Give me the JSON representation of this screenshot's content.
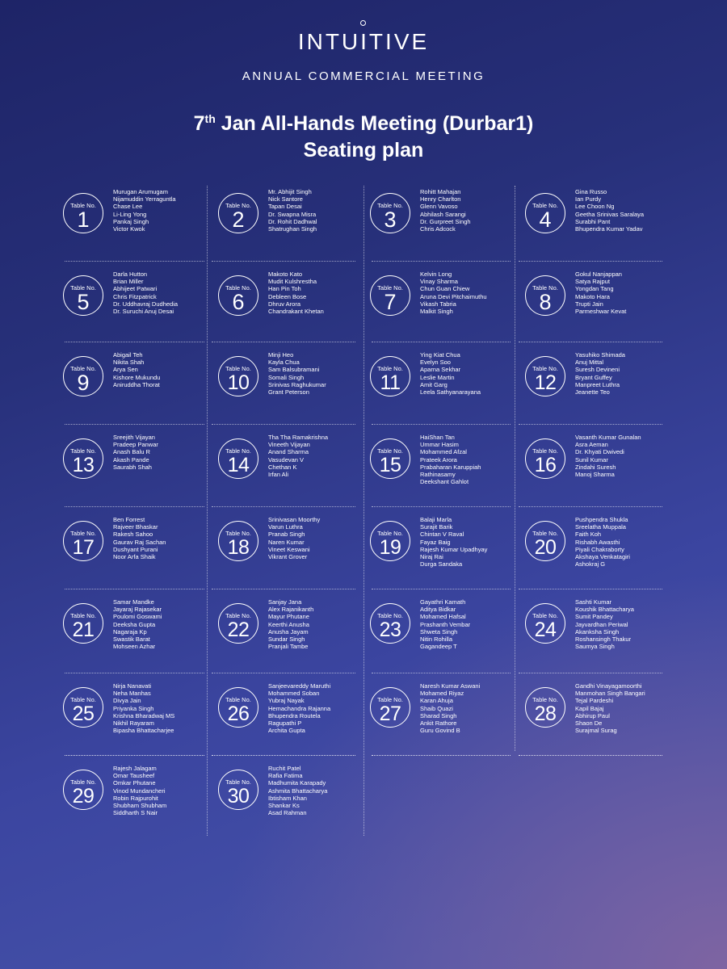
{
  "header": {
    "logo": "INTUITIVE",
    "subtitle": "ANNUAL COMMERCIAL MEETING",
    "title_ordinal": "7",
    "title_suffix": "th",
    "title_rest": " Jan All-Hands Meeting (Durbar1)",
    "title_line2": "Seating plan"
  },
  "table_label": "Table No.",
  "tables": [
    {
      "number": "1",
      "names": [
        "Murugan Arumugam",
        "Nijamuddin Yerraguntla",
        "Chase Lee",
        "Li-Ling Yong",
        "Pankaj Singh",
        "Victor Kwok"
      ]
    },
    {
      "number": "2",
      "names": [
        "Mr. Abhijit Singh",
        "Nick Santore",
        "Tapan Desai",
        "Dr. Swapna Misra",
        "Dr. Rohit Dadhwal",
        "Shatrughan Singh"
      ]
    },
    {
      "number": "3",
      "names": [
        "Rohitt Mahajan",
        "Henry Charlton",
        "Glenn Vavoso",
        "Abhilash Sarangi",
        "Dr. Gurpreet Singh",
        "Chris Adcock"
      ]
    },
    {
      "number": "4",
      "names": [
        "Gina Russo",
        "Ian Purdy",
        "Lee Choon Ng",
        "Geetha Srinivas Saralaya",
        "Surabhi Pant",
        "Bhupendra Kumar Yadav"
      ]
    },
    {
      "number": "5",
      "names": [
        "Darla Hutton",
        "Brian Miller",
        "Abhijeet Patwari",
        "Chris Fitzpatrick",
        "Dr. Uddhavraj Dudhedia",
        "Dr. Suruchi Anuj Desai"
      ]
    },
    {
      "number": "6",
      "names": [
        "Makoto Kato",
        "Mudit Kulshrestha",
        "Han Pin Toh",
        "Debleen Bose",
        "Dhruv Arora",
        "Chandrakant Khetan"
      ]
    },
    {
      "number": "7",
      "names": [
        "Kelvin Long",
        "Vinay Sharma",
        "Chun Guan Chiew",
        "Aruna Devi Pitchaimuthu",
        "Vikash Tabria",
        "Malkit Singh"
      ]
    },
    {
      "number": "8",
      "names": [
        "Gokul Nanjappan",
        "Satya Rajput",
        "Yongdan Tang",
        "Makoto Hara",
        "Trupti Jain",
        "Parmeshwar Kevat"
      ]
    },
    {
      "number": "9",
      "names": [
        "Abigail Teh",
        "Nikita Shah",
        "Arya Sen",
        "Kishore Mukundu",
        "Aniruddha Thorat"
      ]
    },
    {
      "number": "10",
      "names": [
        "Minji Heo",
        "Kayla Chua",
        "Sam Balsubramani",
        "Somali Singh",
        "Srinivas Raghukumar",
        "Grant Peterson"
      ]
    },
    {
      "number": "11",
      "names": [
        "Ying Kiat Chua",
        "Evelyn Soo",
        "Aparna Sekhar",
        "Leslie Martin",
        "Amit Garg",
        "Leela Sathyanarayana"
      ]
    },
    {
      "number": "12",
      "names": [
        "Yasuhiko Shimada",
        "Anuj Mittal",
        "Suresh Devineni",
        "Bryant Guffey",
        "Manpreet Luthra",
        "Jeanette Teo"
      ]
    },
    {
      "number": "13",
      "names": [
        "Sreejith Vijayan",
        "Pradeep Panwar",
        "Anash Balu R",
        "Akash Pande",
        "Saurabh Shah"
      ]
    },
    {
      "number": "14",
      "names": [
        "Tha Tha Ramakrishna",
        "Vineeth Vijayan",
        "Anand Sharma",
        "Vasudevan V",
        "Chethan K",
        "Irfan Ali"
      ]
    },
    {
      "number": "15",
      "names": [
        "HaiShan Tan",
        "Ummar Hasim",
        "Mohammed Afzal",
        "Prateek Arora",
        "Prabaharan Karuppiah",
        "Rathinasamy",
        "Deekshant Gahlot"
      ]
    },
    {
      "number": "16",
      "names": [
        "Vasanth Kumar Gunalan",
        "Asra Aeman",
        "Dr. Khyati Dwivedi",
        "Sunil Kumar",
        "Zindahi Suresh",
        "Manoj Sharma"
      ]
    },
    {
      "number": "17",
      "names": [
        "Ben Forrest",
        "Rajveer Bhaskar",
        "Rakesh Sahoo",
        "Gaurav Raj Sachan",
        "Dushyant Purani",
        "Noor Arfa Shaik"
      ]
    },
    {
      "number": "18",
      "names": [
        "Srinivasan Moorthy",
        "Varun Luthra",
        "Pranab Singh",
        "Naren Kumar",
        "Vineet Keswani",
        "Vikrant Grover"
      ]
    },
    {
      "number": "19",
      "names": [
        "Balaji Marla",
        "Surajit Barik",
        "Chintan V Raval",
        "Fayaz Baig",
        "Rajesh Kumar Upadhyay",
        "Niraj Rai",
        "Durga Sandaka"
      ]
    },
    {
      "number": "20",
      "names": [
        "Pushpendra Shukla",
        "Sreelatha Muppala",
        "Faith Koh",
        "Rishabh Awasthi",
        "Piyali Chakraborty",
        "Akshaya Venkatagiri",
        "Ashokraj G"
      ]
    },
    {
      "number": "21",
      "names": [
        "Samar Mandke",
        "Jayaraj Rajasekar",
        "Poulomi Goswami",
        "Deeksha Gupta",
        "Nagaraja Kp",
        "Swastik Barat",
        "Mohseen Azhar"
      ]
    },
    {
      "number": "22",
      "names": [
        "Sanjay Jana",
        "Alex Rajanikanth",
        "Mayur Phutane",
        "Keerthi Anusha",
        "Anusha Jayam",
        "Sundar Singh",
        "Pranjali Tambe"
      ]
    },
    {
      "number": "23",
      "names": [
        "Gayathri Kamath",
        "Aditya Bidkar",
        "Mohamed Hafsal",
        "Prashanth Vembar",
        "Shweta Singh",
        "Nitin Rohilla",
        "Gagandeep T"
      ]
    },
    {
      "number": "24",
      "names": [
        "Sashti Kumar",
        "Koushik Bhattacharya",
        "Sumit Pandey",
        "Jayvardhan Periwal",
        "Akanksha Singh",
        "Roshansingh Thakur",
        "Saumya Singh"
      ]
    },
    {
      "number": "25",
      "names": [
        "Nirja Nanavati",
        "Neha Manhas",
        "Divya Jain",
        "Priyanka Singh",
        "Krishna Bharadwaj MS",
        "Nikhil Rayaram",
        "Bipasha Bhattacharjee"
      ]
    },
    {
      "number": "26",
      "names": [
        "Sanjeevareddy Maruthi",
        "Mohammed Soban",
        "Yubraj Nayak",
        "Hemachandra Rajanna",
        "Bhupendra Routela",
        "Ragupathi P",
        "Archita Gupta"
      ]
    },
    {
      "number": "27",
      "names": [
        "Naresh Kumar Aswani",
        "Mohamed Riyaz",
        "Karan Ahuja",
        "Shaib Quazi",
        "Sharad Singh",
        "Ankit Rathore",
        "Guru Govind B"
      ]
    },
    {
      "number": "28",
      "names": [
        "Gandhi Vinayagamoorthi",
        "Manmohan Singh Bangari",
        "Tejal Pardeshi",
        "Kapil Bajaj",
        "Abhirup Paul",
        "Shaon De",
        "Surajmal Surag"
      ]
    },
    {
      "number": "29",
      "names": [
        "Rajesh Jalagam",
        "Omar Tausheef",
        "Omkar Phutane",
        "Vinod Mundancheri",
        "Robin Rajpurohit",
        "Shubham Shubham",
        "Siddharth S Nair"
      ]
    },
    {
      "number": "30",
      "names": [
        "Ruchit Patel",
        "Rafia Fatima",
        "Madhumita Karapady",
        "Ashmita Bhattacharya",
        "Ibtisham Khan",
        "Shankar Ks",
        "Asad Rahman"
      ]
    }
  ]
}
